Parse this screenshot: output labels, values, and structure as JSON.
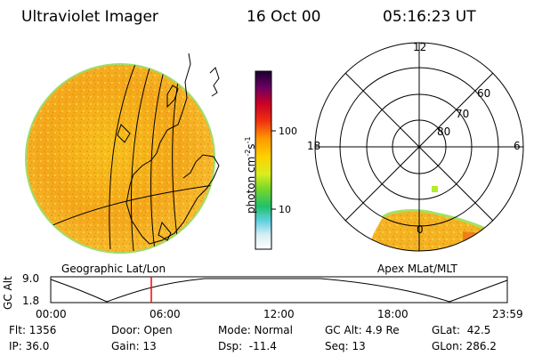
{
  "header": {
    "instrument": "Ultraviolet Imager",
    "date": "16 Oct 00",
    "time": "05:16:23 UT"
  },
  "colorbar": {
    "label": "photon cm",
    "label_exp1": "-2",
    "label_mid": "s",
    "label_exp2": "-1",
    "ticks": [
      "100",
      "10"
    ]
  },
  "polar_plot": {
    "mlt_labels": [
      "12",
      "18",
      "6",
      "0"
    ],
    "lat_labels": [
      "60",
      "70",
      "80"
    ],
    "caption": "Apex MLat/MLT"
  },
  "globe": {
    "caption": "Geographic Lat/Lon"
  },
  "altitude_plot": {
    "ylabel": "GC Alt",
    "y_ticks": [
      "9.0",
      "1.8"
    ],
    "x_ticks": [
      "00:00",
      "06:00",
      "12:00",
      "18:00",
      "23:59"
    ],
    "current_time_marker": "05:16",
    "colors": {
      "marker": "#ff0000",
      "line": "#000000"
    }
  },
  "info": {
    "flt": "Flt: 1356",
    "ip": "IP: 36.0",
    "door": "Door: Open",
    "gain": "Gain: 13",
    "mode": "Mode: Normal",
    "dsp": "Dsp:  -11.4",
    "gcalt": "GC Alt: 4.9 Re",
    "seq": "Seq: 13",
    "glat": "GLat:  42.5",
    "glon": "GLon: 286.2"
  }
}
